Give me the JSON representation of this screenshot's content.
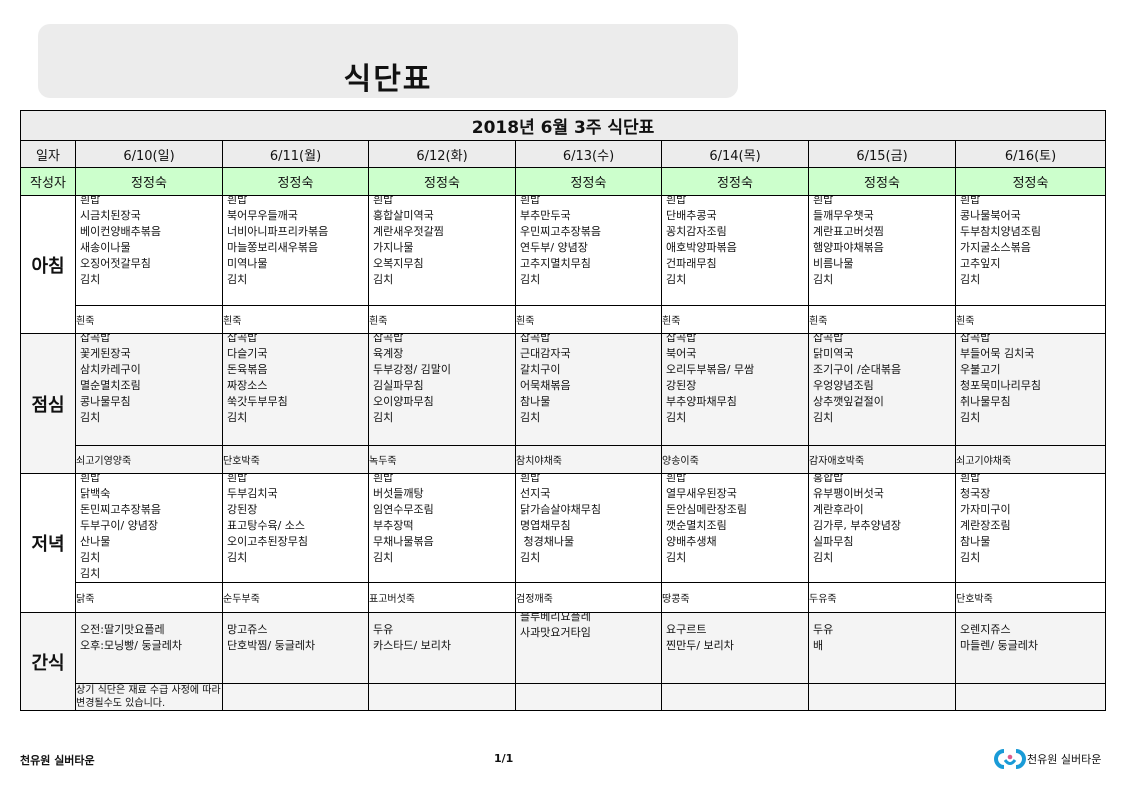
{
  "banner": {
    "title": "식단표"
  },
  "table": {
    "title": "2018년 6월 3주 식단표",
    "date_label": "일자",
    "author_label": "작성자",
    "days": [
      {
        "date": "6/10(일)",
        "author": "정정숙"
      },
      {
        "date": "6/11(월)",
        "author": "정정숙"
      },
      {
        "date": "6/12(화)",
        "author": "정정숙"
      },
      {
        "date": "6/13(수)",
        "author": "정정숙"
      },
      {
        "date": "6/14(목)",
        "author": "정정숙"
      },
      {
        "date": "6/15(금)",
        "author": "정정숙"
      },
      {
        "date": "6/16(토)",
        "author": "정정숙"
      }
    ],
    "meals": [
      {
        "label": "아침",
        "key": "breakfast",
        "items": [
          [
            "흰밥",
            "시금치된장국",
            "베이컨양배추볶음",
            "새송이나물",
            "오징어젓갈무침",
            "김치"
          ],
          [
            "흰밥",
            "북어무우들깨국",
            "너비아니파프리카볶음",
            "마늘쫑보리새우볶음",
            "미역나물",
            "김치"
          ],
          [
            "흰밥",
            "홍합살미역국",
            "계란새우젓갈찜",
            "가지나물",
            "오복지무침",
            "김치"
          ],
          [
            "흰밥",
            "부추만두국",
            "우민찌고추장볶음",
            "연두부/ 양념장",
            "고추지멸치무침",
            "김치"
          ],
          [
            "흰밥",
            "단배추콩국",
            "꽁치감자조림",
            "애호박양파볶음",
            "건파래무침",
            "김치"
          ],
          [
            "흰밥",
            "들깨무우챗국",
            "계란표고버섯찜",
            "햄양파야채볶음",
            "비름나물",
            "김치"
          ],
          [
            "흰밥",
            "콩나물북어국",
            "두부참치양념조림",
            "가지굴소스볶음",
            "고추잎지",
            "김치"
          ]
        ],
        "porridge": [
          "흰죽",
          "흰죽",
          "흰죽",
          "흰죽",
          "흰죽",
          "흰죽",
          "흰죽"
        ]
      },
      {
        "label": "점심",
        "key": "lunch",
        "items": [
          [
            "잡곡밥",
            "꽃게된장국",
            "삼치카레구이",
            "멸순멸치조림",
            "콩나물무침",
            "김치"
          ],
          [
            "잡곡밥",
            "다슬기국",
            "돈육볶음",
            "짜장소스",
            "쑥갓두부무침",
            "김치"
          ],
          [
            "잡곡밥",
            "육계장",
            "두부강정/ 김말이",
            "김실파무침",
            "오이양파무침",
            "김치"
          ],
          [
            "잡곡밥",
            "근대감자국",
            "갈치구이",
            "어묵채볶음",
            "참나물",
            "김치"
          ],
          [
            "잡곡밥",
            "북어국",
            "오리두부볶음/ 무쌈",
            "강된장",
            "부추양파채무침",
            "김치"
          ],
          [
            "잡곡밥",
            "닭미역국",
            "조기구이 /순대볶음",
            "우엉양념조림",
            "상추깻잎겉절이",
            "김치"
          ],
          [
            "잡곡밥",
            "부들어묵 김치국",
            "우불고기",
            "청포묵미나리무침",
            "취나물무침",
            "김치"
          ]
        ],
        "porridge": [
          "쇠고기영양죽",
          "단호박죽",
          "녹두죽",
          "참치야채죽",
          "양송이죽",
          "감자애호박죽",
          "쇠고기야채죽"
        ]
      },
      {
        "label": "저녁",
        "key": "dinner",
        "items": [
          [
            "흰밥",
            "닭백숙",
            "돈민찌고추장볶음",
            "두부구이/ 양념장",
            "산나물",
            "김치",
            "김치"
          ],
          [
            "흰밥",
            "두부김치국",
            "강된장",
            "표고탕수육/ 소스",
            "오이고추된장무침",
            "김치"
          ],
          [
            "흰밥",
            "버섯들깨탕",
            "임연수무조림",
            "부추장떡",
            "무채나물볶음",
            "김치"
          ],
          [
            "흰밥",
            "선지국",
            "닭가슴살야채무침",
            "명엽채무침",
            " 청경채나물",
            "김치"
          ],
          [
            "흰밥",
            "열무새우된장국",
            "돈안심메란장조림",
            "깻순멸치조림",
            "양배추생채",
            "김치"
          ],
          [
            "홍합밥",
            "유부팽이버섯국",
            "계란후라이",
            "김가루, 부추양념장",
            "실파무침",
            "김치"
          ],
          [
            "흰밥",
            "청국장",
            "가자미구이",
            "계란장조림",
            "참나물",
            "김치"
          ]
        ],
        "porridge": [
          "닭죽",
          "순두부죽",
          "표고버섯죽",
          "검정깨죽",
          "땅콩죽",
          "두유죽",
          "단호박죽"
        ]
      }
    ],
    "snack": {
      "label": "간식",
      "items": [
        [
          "오전:딸기맛요플레",
          "오후:모닝빵/ 둥글레차"
        ],
        [
          "망고쥬스",
          "단호박찜/ 둥글레차"
        ],
        [
          "두유",
          "카스타드/ 보리차"
        ],
        [
          "블루베리요플레",
          "사과맛요거타임"
        ],
        [
          "요구르트",
          "찐만두/ 보리차"
        ],
        [
          "두유",
          "배"
        ],
        [
          "오렌지쥬스",
          "마들렌/ 둥글레차"
        ]
      ],
      "note": "상기 식단은 재료 수급 사정에 따라 변경될수도 있습니다."
    }
  },
  "footer": {
    "organization": "천유원 실버타운",
    "page": "1/1",
    "logo_text": "천유원 실버타운",
    "logo_colors": [
      "#1a9bd7",
      "#e05a8a"
    ]
  }
}
